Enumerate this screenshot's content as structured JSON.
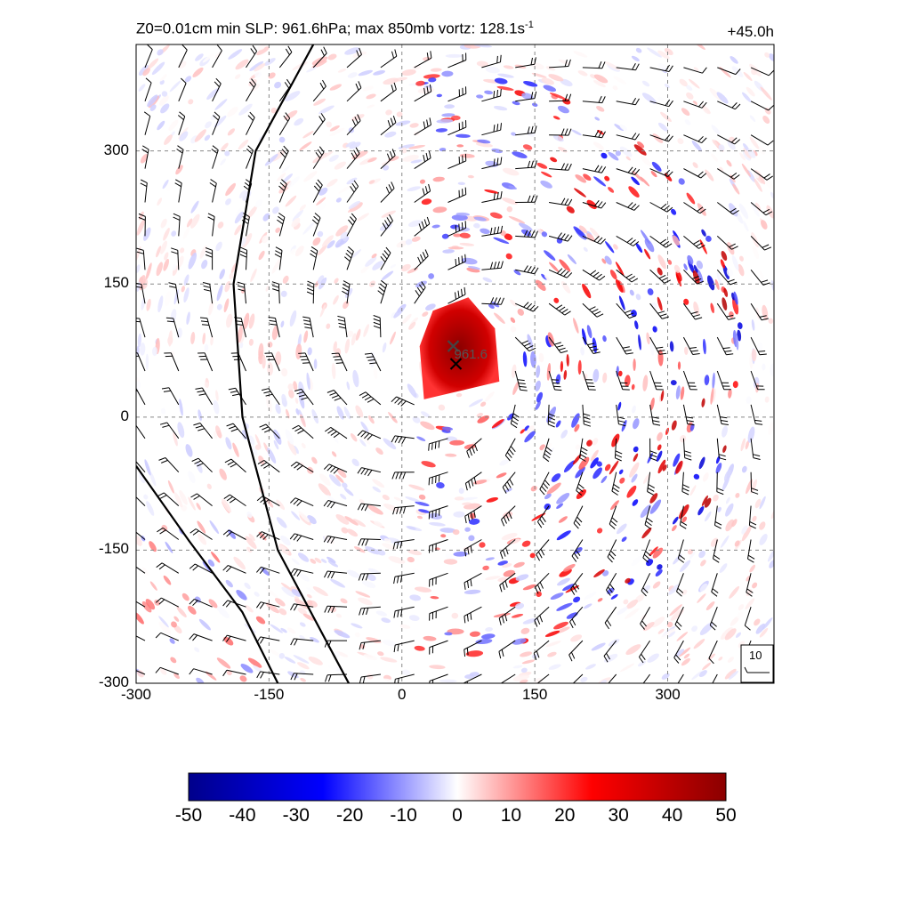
{
  "title": {
    "left": "Z0=0.01cm  min SLP: 961.6hPa; max 850mb vortz: 128.1s",
    "left_exponent": "-1",
    "right": "+45.0h"
  },
  "colors": {
    "negative_max": "#00008b",
    "negative": "#0000ff",
    "zero": "#ffffff",
    "positive": "#ff0000",
    "positive_max": "#8b0000",
    "barb": "#000000",
    "grid": "#888888"
  },
  "chart_data": {
    "type": "heatmap",
    "field": "850mb relative vorticity with wind barbs",
    "xlim": [
      -300,
      420
    ],
    "ylim": [
      -300,
      420
    ],
    "xticks": [
      "-300",
      "-150",
      "0",
      "150",
      "300"
    ],
    "yticks": [
      "-300",
      "-150",
      "0",
      "150",
      "300"
    ],
    "grid": true,
    "center_marks": [
      {
        "x": 58,
        "y": 80,
        "symbol": "x"
      },
      {
        "x": 61,
        "y": 60,
        "symbol": "x",
        "label": "961.6"
      }
    ],
    "core": {
      "x": 60,
      "y": 60,
      "peak": 50
    },
    "reference_barb": {
      "label": "10",
      "position": "bottom-right"
    },
    "colorbar": {
      "min": -50,
      "max": 50,
      "ticks": [
        "-50",
        "-40",
        "-30",
        "-20",
        "-10",
        "0",
        "10",
        "20",
        "30",
        "40",
        "50"
      ],
      "colormap": [
        "#00008b",
        "#0000ff",
        "#ffffff",
        "#ff0000",
        "#8b0000"
      ]
    }
  }
}
